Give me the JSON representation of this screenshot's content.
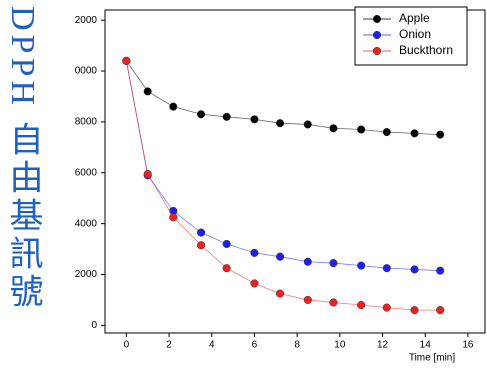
{
  "chart_data": {
    "type": "line",
    "ylabel": "DPPH 自由基訊號",
    "xlabel": "Time [min]",
    "x": [
      0,
      1,
      2.2,
      3.5,
      4.7,
      6,
      7.2,
      8.5,
      9.7,
      11,
      12.2,
      13.5,
      14.7
    ],
    "series": [
      {
        "name": "Apple",
        "color": "#000000",
        "values": [
          10400,
          9200,
          8600,
          8300,
          8200,
          8100,
          7950,
          7900,
          7750,
          7700,
          7600,
          7550,
          7500
        ]
      },
      {
        "name": "Onion",
        "color": "#2020ee",
        "values": [
          10400,
          5900,
          4500,
          3650,
          3200,
          2850,
          2700,
          2500,
          2450,
          2350,
          2250,
          2200,
          2150
        ]
      },
      {
        "name": "Buckthorn",
        "color": "#ee2020",
        "values": [
          10400,
          5950,
          4250,
          3150,
          2250,
          1650,
          1250,
          1000,
          900,
          800,
          700,
          600,
          600
        ]
      }
    ],
    "xlim": [
      -1,
      16.8
    ],
    "xticks": [
      0,
      2,
      4,
      6,
      8,
      10,
      12,
      14,
      16
    ],
    "ylim": [
      -300,
      12400
    ],
    "yticks": [
      0,
      2000,
      4000,
      6000,
      8000,
      {
        "value": 10000,
        "label": "0000"
      },
      {
        "value": 12000,
        "label": "2000"
      }
    ],
    "legend": "upper right"
  }
}
